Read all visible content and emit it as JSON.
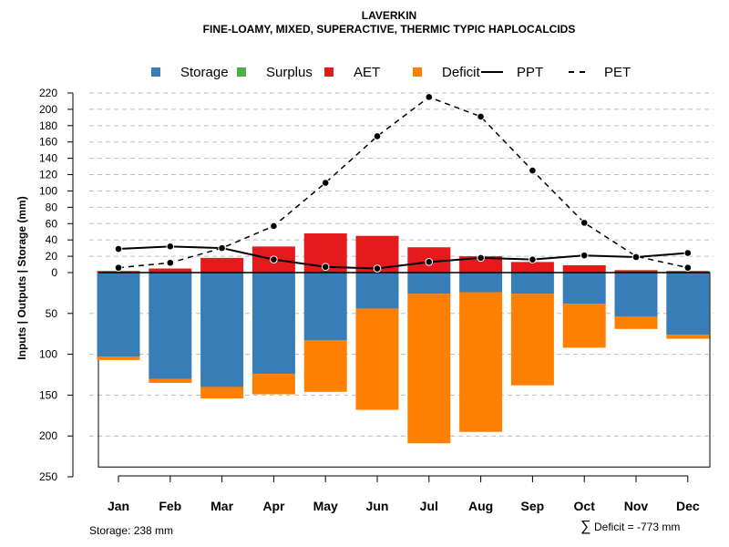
{
  "chart_data": {
    "type": "bar",
    "title": "LAVERKIN",
    "subtitle": "FINE-LOAMY, MIXED, SUPERACTIVE, THERMIC TYPIC HAPLOCALCIDS",
    "ylabel": "Inputs | Outputs | Storage    (mm)",
    "xlabel": "",
    "categories": [
      "Jan",
      "Feb",
      "Mar",
      "Apr",
      "May",
      "Jun",
      "Jul",
      "Aug",
      "Sep",
      "Oct",
      "Nov",
      "Dec"
    ],
    "ylim_upper": [
      0,
      220
    ],
    "ylim_lower": [
      0,
      250
    ],
    "upper_ticks": [
      "220",
      "200",
      "180",
      "160",
      "140",
      "120",
      "100",
      "80",
      "60",
      "40",
      "20",
      "0"
    ],
    "upper_tick_values": [
      220,
      200,
      180,
      160,
      140,
      120,
      100,
      80,
      60,
      40,
      20,
      0
    ],
    "lower_ticks": [
      "50",
      "100",
      "150",
      "200",
      "250"
    ],
    "lower_tick_values": [
      50,
      100,
      150,
      200,
      250
    ],
    "legend": [
      {
        "name": "Storage",
        "color": "#377eb8",
        "shape": "square"
      },
      {
        "name": "Surplus",
        "color": "#4daf4a",
        "shape": "square"
      },
      {
        "name": "AET",
        "color": "#e41a1c",
        "shape": "square"
      },
      {
        "name": "Deficit",
        "color": "#ff7f00",
        "shape": "square"
      },
      {
        "name": "PPT",
        "color": "#000000",
        "shape": "solid-line"
      },
      {
        "name": "PET",
        "color": "#000000",
        "shape": "dashed-line"
      }
    ],
    "legend_position": "top",
    "series": [
      {
        "name": "AET",
        "values": [
          2,
          5,
          18,
          32,
          48,
          45,
          31,
          20,
          13,
          9,
          3,
          2
        ]
      },
      {
        "name": "Storage",
        "values": [
          103,
          130,
          140,
          124,
          83,
          44,
          26,
          24,
          26,
          38,
          54,
          76
        ]
      },
      {
        "name": "Deficit",
        "values": [
          4,
          5,
          14,
          25,
          63,
          124,
          183,
          171,
          112,
          54,
          15,
          5
        ]
      },
      {
        "name": "PPT",
        "values": [
          29,
          32,
          30,
          16,
          7,
          5,
          13,
          18,
          16,
          21,
          19,
          24
        ]
      },
      {
        "name": "PET",
        "values": [
          6,
          12,
          30,
          57,
          110,
          167,
          215,
          191,
          125,
          61,
          20,
          6
        ]
      }
    ],
    "storage_capacity": 238,
    "footer_left": "Storage: 238 mm",
    "footer_right": "Deficit = -773 mm",
    "footer_right_symbol": "∑"
  }
}
